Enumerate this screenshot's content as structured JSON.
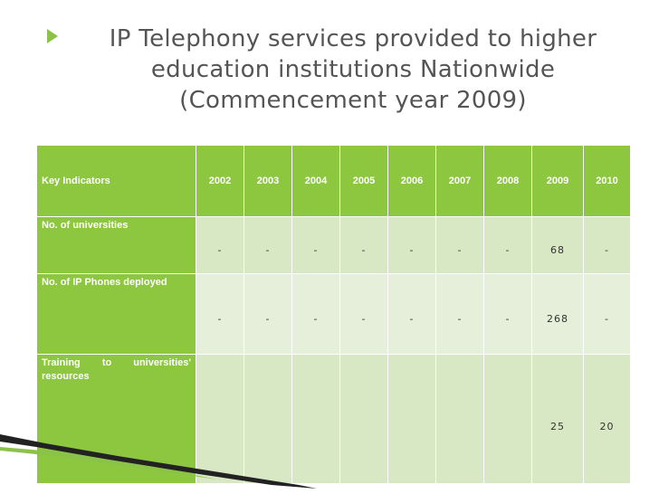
{
  "title_lines": [
    "IP Telephony services provided to higher",
    "education institutions Nationwide",
    "(Commencement year 2009)"
  ],
  "table": {
    "header_label": "Key Indicators",
    "years": [
      "2002",
      "2003",
      "2004",
      "2005",
      "2006",
      "2007",
      "2008",
      "2009",
      "2010"
    ],
    "rows": [
      {
        "label": "No. of universities",
        "values": [
          "-",
          "-",
          "-",
          "-",
          "-",
          "-",
          "-",
          "68",
          "-"
        ]
      },
      {
        "label": "No. of IP Phones deployed",
        "values": [
          "-",
          "-",
          "-",
          "-",
          "-",
          "-",
          "-",
          "268",
          "-"
        ]
      },
      {
        "label": "Training to universities' resources",
        "values": [
          "",
          "",
          "",
          "",
          "",
          "",
          "",
          "25",
          "20"
        ]
      }
    ]
  },
  "colors": {
    "accent": "#8dc63f",
    "cell_dark": "#d8e7c4",
    "cell_light": "#e6efda",
    "title": "#555555"
  }
}
